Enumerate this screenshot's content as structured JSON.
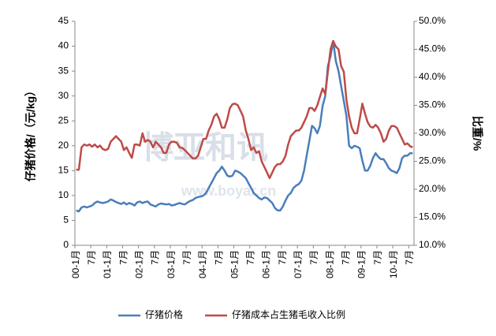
{
  "chart_data": {
    "type": "line",
    "y_label": "仔猪价格/（元/kg）",
    "y2_label": "比重/%",
    "watermark": "博亚和讯",
    "watermark_url": "www.boyar.cn",
    "categories": [
      "00-1月",
      null,
      null,
      null,
      null,
      null,
      "7月",
      null,
      null,
      null,
      null,
      null,
      "01-1月",
      null,
      null,
      null,
      null,
      null,
      "7月",
      null,
      null,
      null,
      null,
      null,
      "02-1月",
      null,
      null,
      null,
      null,
      null,
      "7月",
      null,
      null,
      null,
      null,
      null,
      "03-1月",
      null,
      null,
      null,
      null,
      null,
      "7月",
      null,
      null,
      null,
      null,
      null,
      "04-1月",
      null,
      null,
      null,
      null,
      null,
      "7月",
      null,
      null,
      null,
      null,
      null,
      "05-1月",
      null,
      null,
      null,
      null,
      null,
      "7月",
      null,
      null,
      null,
      null,
      null,
      "06-1月",
      null,
      null,
      null,
      null,
      null,
      "7月",
      null,
      null,
      null,
      null,
      null,
      "07-1月",
      null,
      null,
      null,
      null,
      null,
      "7月",
      null,
      null,
      null,
      null,
      null,
      "08-1月",
      null,
      null,
      null,
      null,
      null,
      "7月",
      null,
      null,
      null,
      null,
      null,
      "09-1月",
      null,
      null,
      null,
      null,
      null,
      "7月",
      null,
      null,
      null,
      null,
      null,
      "10-1月",
      null,
      null,
      null,
      null,
      null,
      "7月",
      null
    ],
    "series": [
      {
        "name": "仔猪价格",
        "color": "#4a7ebb",
        "axis": "y",
        "values": [
          7,
          6.8,
          7.6,
          7.8,
          7.6,
          7.8,
          8,
          8.5,
          8.8,
          8.6,
          8.5,
          8.6,
          8.8,
          9.2,
          9,
          8.7,
          8.5,
          8.3,
          8.6,
          8.2,
          8.5,
          8.3,
          8,
          8.6,
          8.8,
          8.5,
          8.7,
          8.8,
          8.2,
          8,
          7.8,
          8.2,
          8.4,
          8.3,
          8.2,
          8.3,
          8,
          8.1,
          8.3,
          8.5,
          8.3,
          8.2,
          8.6,
          8.9,
          9.1,
          9.5,
          9.7,
          9.8,
          10,
          10.5,
          11.5,
          12.5,
          13.5,
          14.5,
          15,
          15.8,
          15,
          14,
          13.8,
          14,
          15,
          14.8,
          14.5,
          14,
          13.5,
          12.5,
          11.5,
          10.5,
          10,
          9.5,
          9.2,
          9.6,
          9.5,
          9,
          8.5,
          7.5,
          7,
          7,
          7.8,
          9,
          10,
          10.5,
          11.5,
          12,
          12.3,
          13,
          15,
          18,
          21,
          24,
          23.5,
          22.5,
          24,
          28,
          30,
          36,
          38,
          41,
          37,
          35,
          32,
          29,
          26,
          20,
          19.5,
          20,
          19.8,
          19.5,
          17,
          15,
          15,
          16,
          17.5,
          18.5,
          17.8,
          17.3,
          17.3,
          16.5,
          15.5,
          15,
          14.8,
          14.5,
          15.5,
          17.5,
          18,
          18,
          18.5,
          18.5
        ]
      },
      {
        "name": "仔猪成本占生猪毛收入比例",
        "color": "#be4b48",
        "axis": "y2",
        "values": [
          23.5,
          23.5,
          27.5,
          28,
          27.8,
          28,
          27.6,
          28,
          27.5,
          27.8,
          27.2,
          27,
          27.2,
          28.5,
          29,
          29.5,
          29,
          28.5,
          27,
          27.5,
          26.5,
          25.6,
          28,
          28,
          27.8,
          30,
          28.5,
          28.8,
          28.5,
          27.5,
          28.5,
          28,
          27.5,
          26.5,
          26.5,
          28,
          28.5,
          28.5,
          28.3,
          27.5,
          27.4,
          27,
          26.5,
          26,
          25.5,
          25.5,
          26,
          27.5,
          29,
          29,
          30.5,
          31.5,
          33,
          33.5,
          32.5,
          31,
          31,
          32.5,
          34.5,
          35.2,
          35.3,
          35,
          34,
          33,
          30.5,
          29,
          27,
          27.5,
          26.5,
          26.8,
          25,
          24,
          23,
          22,
          23,
          24,
          24.5,
          24.5,
          25,
          26,
          28,
          29.5,
          30,
          30.5,
          30.5,
          31,
          32,
          33,
          34.5,
          34.5,
          34,
          35,
          36.5,
          38,
          37,
          41,
          45,
          46.5,
          45.5,
          45,
          42,
          41,
          36,
          33,
          31,
          30,
          30,
          32.5,
          35.3,
          33.5,
          32,
          31.2,
          31,
          31.5,
          31,
          30,
          28.5,
          29,
          30.5,
          31.3,
          31.3,
          31,
          30,
          29,
          28,
          28.2,
          27.7,
          27.5
        ]
      }
    ],
    "ylim": [
      0,
      45
    ],
    "yticks": [
      0,
      5,
      10,
      15,
      20,
      25,
      30,
      35,
      40,
      45
    ],
    "y2lim": [
      10,
      50
    ],
    "y2ticks": [
      {
        "value": 10,
        "label": "10.0%"
      },
      {
        "value": 15,
        "label": "15.0%"
      },
      {
        "value": 20,
        "label": "20.0%"
      },
      {
        "value": 25,
        "label": "25.0%"
      },
      {
        "value": 30,
        "label": "30.0%"
      },
      {
        "value": 35,
        "label": "35.0%"
      },
      {
        "value": 40,
        "label": "40.0%"
      },
      {
        "value": 45,
        "label": "45.0%"
      },
      {
        "value": 50,
        "label": "50.0%"
      }
    ],
    "legend": "bottom"
  }
}
